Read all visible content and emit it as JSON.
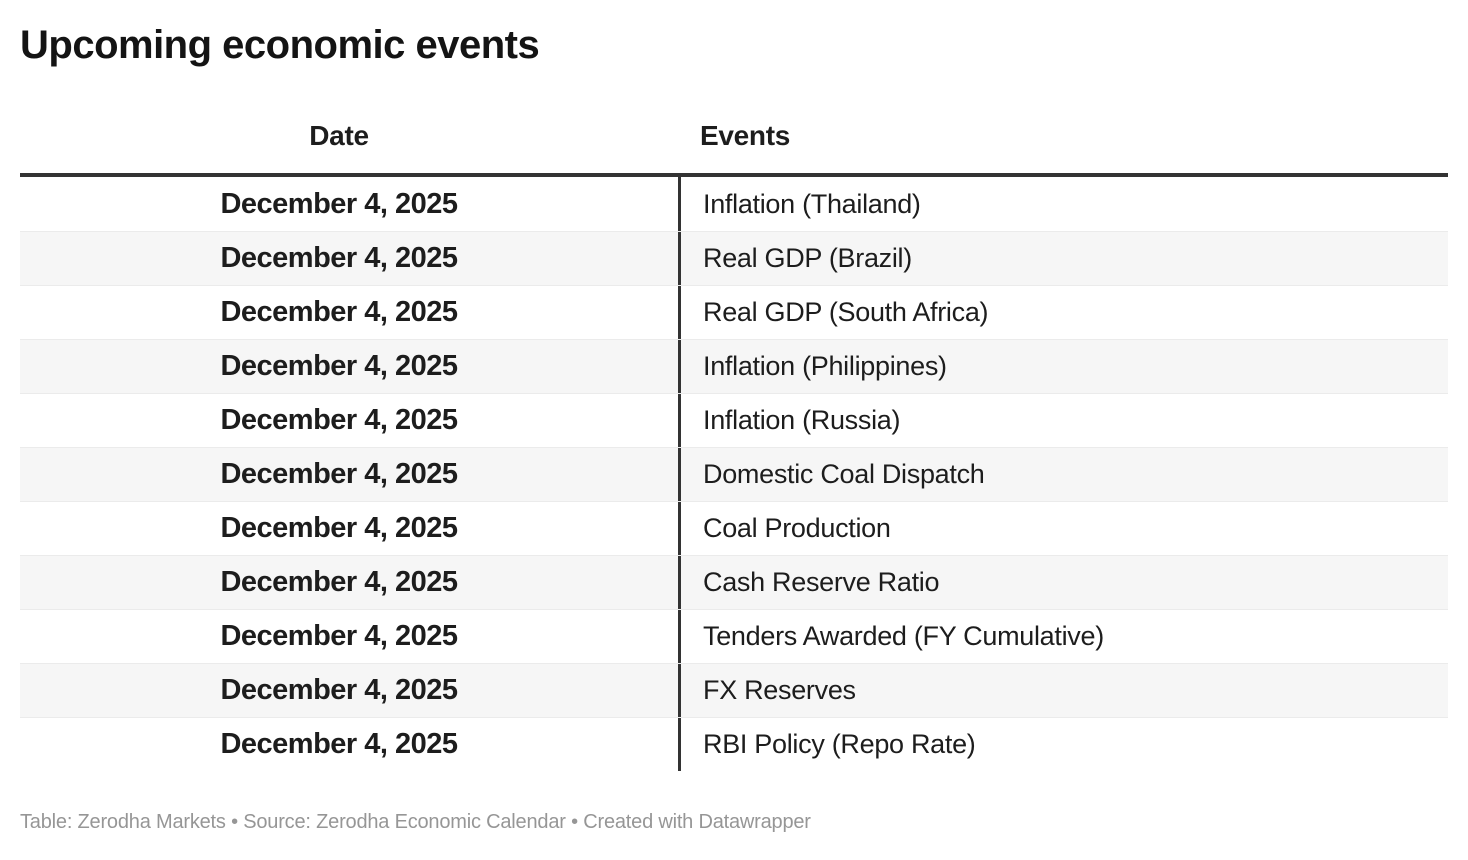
{
  "chart_data": {
    "type": "table",
    "title": "Upcoming economic events",
    "columns": [
      "Date",
      "Events"
    ],
    "rows": [
      [
        "December 4, 2025",
        "Inflation (Thailand)"
      ],
      [
        "December 4, 2025",
        "Real GDP (Brazil)"
      ],
      [
        "December 4, 2025",
        "Real GDP (South Africa)"
      ],
      [
        "December 4, 2025",
        "Inflation (Philippines)"
      ],
      [
        "December 4, 2025",
        "Inflation (Russia)"
      ],
      [
        "December 4, 2025",
        "Domestic Coal Dispatch"
      ],
      [
        "December 4, 2025",
        "Coal Production"
      ],
      [
        "December 4, 2025",
        "Cash Reserve Ratio"
      ],
      [
        "December 4, 2025",
        "Tenders Awarded (FY Cumulative)"
      ],
      [
        "December 4, 2025",
        "FX Reserves"
      ],
      [
        "December 4, 2025",
        "RBI Policy (Repo Rate)"
      ]
    ],
    "layout_hints": {
      "date_column_align": "center",
      "events_column_align": "left",
      "striped_rows": true
    }
  },
  "footer": {
    "parts": [
      {
        "text": "Table: ",
        "link": false
      },
      {
        "text": "Zerodha Markets",
        "link": true
      },
      {
        "text": " • ",
        "link": false
      },
      {
        "text": "Source: ",
        "link": false
      },
      {
        "text": "Zerodha Economic Calendar",
        "link": true
      },
      {
        "text": " • ",
        "link": false
      },
      {
        "text": "Created with ",
        "link": false
      },
      {
        "text": "Datawrapper",
        "link": true
      }
    ]
  },
  "colors": {
    "header_rule": "#333333",
    "column_divider": "#333333",
    "row_alt_background": "#f6f6f6",
    "row_separator": "#ebebeb",
    "text": "#1d1d1d",
    "footer_text": "#969696"
  }
}
